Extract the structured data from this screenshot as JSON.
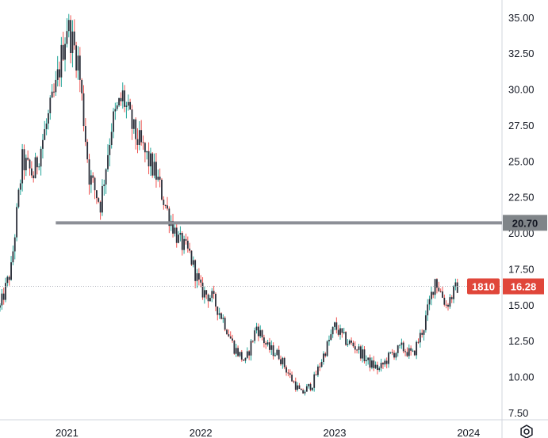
{
  "chart_data": {
    "type": "candlestick",
    "symbol_badge": "1810",
    "last_price_label": "16.28",
    "last_price": 16.28,
    "horizontal_level_label": "20.70",
    "horizontal_level": 20.7,
    "ylim": [
      7.0,
      36.2
    ],
    "y_ticks": [
      {
        "value": 35.0,
        "label": "35.00"
      },
      {
        "value": 32.5,
        "label": "32.50"
      },
      {
        "value": 30.0,
        "label": "30.00"
      },
      {
        "value": 27.5,
        "label": "27.50"
      },
      {
        "value": 25.0,
        "label": "25.00"
      },
      {
        "value": 22.5,
        "label": "22.50"
      },
      {
        "value": 20.0,
        "label": "20.00"
      },
      {
        "value": 17.5,
        "label": "17.50"
      },
      {
        "value": 15.0,
        "label": "15.00"
      },
      {
        "value": 12.5,
        "label": "12.50"
      },
      {
        "value": 10.0,
        "label": "10.00"
      },
      {
        "value": 7.5,
        "label": "7.50"
      }
    ],
    "x_ticks": [
      {
        "label": "2021",
        "date": "2021-01"
      },
      {
        "label": "2022",
        "date": "2022-01"
      },
      {
        "label": "2023",
        "date": "2023-01"
      },
      {
        "label": "2024",
        "date": "2024-01"
      }
    ],
    "x_range": [
      "2020-07",
      "2024-04"
    ],
    "price_path": [
      [
        "2020-07",
        14.8
      ],
      [
        "2020-08",
        17.5
      ],
      [
        "2020-09",
        25.0
      ],
      [
        "2020-10",
        24.0
      ],
      [
        "2020-11",
        27.0
      ],
      [
        "2020-12",
        30.0
      ],
      [
        "2021-01",
        34.5
      ],
      [
        "2021-02",
        32.0
      ],
      [
        "2021-03",
        24.0
      ],
      [
        "2021-04",
        22.0
      ],
      [
        "2021-05",
        27.5
      ],
      [
        "2021-06",
        29.5
      ],
      [
        "2021-07",
        27.0
      ],
      [
        "2021-08",
        25.5
      ],
      [
        "2021-09",
        24.0
      ],
      [
        "2021-10",
        21.5
      ],
      [
        "2021-11",
        19.5
      ],
      [
        "2021-12",
        18.5
      ],
      [
        "2022-01",
        16.0
      ],
      [
        "2022-02",
        15.5
      ],
      [
        "2022-03",
        14.0
      ],
      [
        "2022-04",
        12.0
      ],
      [
        "2022-05",
        11.0
      ],
      [
        "2022-06",
        13.5
      ],
      [
        "2022-07",
        12.0
      ],
      [
        "2022-08",
        11.5
      ],
      [
        "2022-09",
        10.0
      ],
      [
        "2022-10",
        8.8
      ],
      [
        "2022-11",
        9.5
      ],
      [
        "2022-12",
        11.5
      ],
      [
        "2023-01",
        13.5
      ],
      [
        "2023-02",
        12.5
      ],
      [
        "2023-03",
        12.0
      ],
      [
        "2023-04",
        11.0
      ],
      [
        "2023-05",
        10.5
      ],
      [
        "2023-06",
        11.5
      ],
      [
        "2023-07",
        12.0
      ],
      [
        "2023-08",
        11.5
      ],
      [
        "2023-09",
        13.5
      ],
      [
        "2023-10",
        16.8
      ],
      [
        "2023-11",
        15.0
      ],
      [
        "2023-12",
        16.28
      ]
    ],
    "colors": {
      "up": "#26a69a",
      "down": "#ef5350",
      "candle": "#2a2e39",
      "level_line": "#8c8f96",
      "level_tag_bg": "#808589",
      "last_price_bg": "#e0463a",
      "grid": "#e0e3eb"
    }
  },
  "toolbar": {
    "settings_icon": "gear-icon"
  }
}
